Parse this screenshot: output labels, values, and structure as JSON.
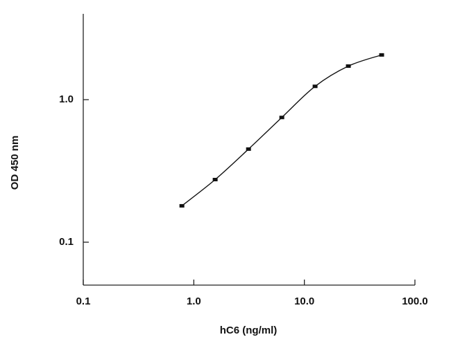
{
  "chart_data": {
    "type": "scatter",
    "x_label": "hC6 (ng/ml)",
    "y_label": "OD 450 nm",
    "x_scale": "log",
    "y_scale": "log",
    "xlim": [
      0.1,
      100
    ],
    "xticks": [
      0.1,
      {
        "value": 1,
        "label": "1.0"
      },
      {
        "value": 10,
        "label": "10.0"
      },
      {
        "value": 100,
        "label": "100.0"
      }
    ],
    "ylim": [
      0.05,
      4
    ],
    "yticks": [
      0.1,
      {
        "value": 1,
        "label": "1.0"
      }
    ],
    "series": [
      {
        "color": "#111111",
        "x": [
          0.78,
          1.56,
          3.125,
          6.25,
          12.5,
          25,
          50
        ],
        "values": [
          0.18,
          0.275,
          0.45,
          0.75,
          1.24,
          1.72,
          2.06
        ]
      }
    ]
  }
}
